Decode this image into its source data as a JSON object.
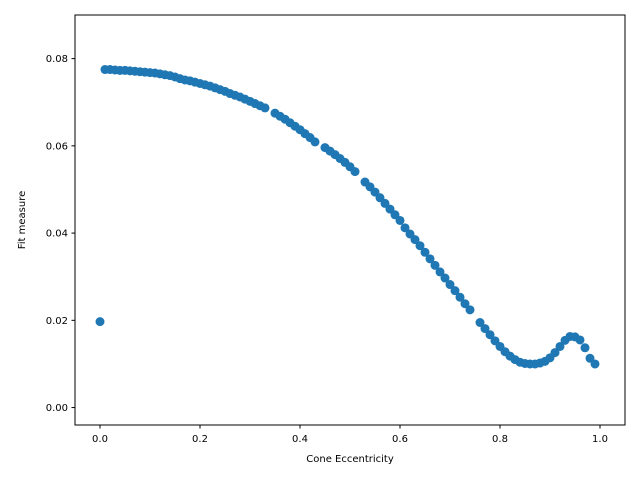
{
  "chart_data": {
    "type": "scatter",
    "title": "",
    "xlabel": "Cone Eccentricity",
    "ylabel": "Fit measure",
    "xlim": [
      -0.05,
      1.05
    ],
    "ylim": [
      -0.004,
      0.09
    ],
    "grid": false,
    "x_ticks": [
      0.0,
      0.2,
      0.4,
      0.6,
      0.8,
      1.0
    ],
    "x_tick_labels": [
      "0.0",
      "0.2",
      "0.4",
      "0.6",
      "0.8",
      "1.0"
    ],
    "y_ticks": [
      0.0,
      0.02,
      0.04,
      0.06,
      0.08
    ],
    "y_tick_labels": [
      "0.00",
      "0.02",
      "0.04",
      "0.06",
      "0.08"
    ],
    "marker_color": "#1f77b4",
    "series": [
      {
        "name": "fit",
        "x": [
          0.0,
          0.01,
          0.02,
          0.03,
          0.04,
          0.05,
          0.06,
          0.07,
          0.08,
          0.09,
          0.1,
          0.11,
          0.12,
          0.13,
          0.14,
          0.15,
          0.16,
          0.17,
          0.18,
          0.19,
          0.2,
          0.21,
          0.22,
          0.23,
          0.24,
          0.25,
          0.26,
          0.27,
          0.28,
          0.29,
          0.3,
          0.31,
          0.32,
          0.33,
          0.35,
          0.36,
          0.37,
          0.38,
          0.39,
          0.4,
          0.41,
          0.42,
          0.43,
          0.45,
          0.46,
          0.47,
          0.48,
          0.49,
          0.5,
          0.51,
          0.53,
          0.54,
          0.55,
          0.56,
          0.57,
          0.58,
          0.59,
          0.6,
          0.61,
          0.62,
          0.63,
          0.64,
          0.65,
          0.66,
          0.67,
          0.68,
          0.69,
          0.7,
          0.71,
          0.72,
          0.73,
          0.74,
          0.76,
          0.77,
          0.78,
          0.79,
          0.8,
          0.81,
          0.82,
          0.83,
          0.84,
          0.85,
          0.86,
          0.87,
          0.88,
          0.89,
          0.9,
          0.91,
          0.92,
          0.93,
          0.94,
          0.95,
          0.96,
          0.97,
          0.98,
          0.99
        ],
        "y": [
          0.0197,
          0.0775,
          0.0775,
          0.0774,
          0.0773,
          0.0773,
          0.0772,
          0.0771,
          0.077,
          0.0769,
          0.0768,
          0.0767,
          0.0765,
          0.0763,
          0.0761,
          0.0758,
          0.0754,
          0.0751,
          0.0749,
          0.0746,
          0.0743,
          0.074,
          0.0737,
          0.0733,
          0.0729,
          0.0725,
          0.072,
          0.0716,
          0.0712,
          0.0707,
          0.0702,
          0.0697,
          0.0692,
          0.0687,
          0.0675,
          0.0668,
          0.0661,
          0.0653,
          0.0645,
          0.0637,
          0.0628,
          0.0619,
          0.0609,
          0.0596,
          0.0588,
          0.058,
          0.0571,
          0.0562,
          0.0552,
          0.0541,
          0.0517,
          0.0506,
          0.0494,
          0.0481,
          0.0468,
          0.0455,
          0.0442,
          0.0429,
          0.0412,
          0.0398,
          0.0385,
          0.0371,
          0.0356,
          0.0341,
          0.0326,
          0.0311,
          0.0297,
          0.0282,
          0.0268,
          0.0253,
          0.0238,
          0.0224,
          0.0195,
          0.0181,
          0.0167,
          0.0153,
          0.014,
          0.0128,
          0.0118,
          0.011,
          0.0104,
          0.0101,
          0.01,
          0.01,
          0.0102,
          0.0106,
          0.0114,
          0.0126,
          0.014,
          0.0154,
          0.0163,
          0.0162,
          0.0155,
          0.0137,
          0.0113,
          0.01
        ]
      }
    ]
  }
}
